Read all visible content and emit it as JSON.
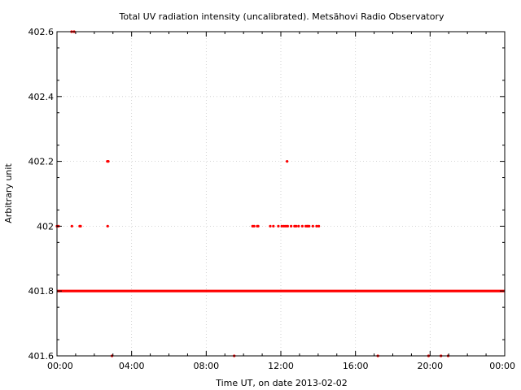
{
  "chart_data": {
    "type": "scatter",
    "title": "Total UV radiation intensity (uncalibrated). Metsähovi Radio Observatory",
    "xlabel": "Time UT, on date 2013-02-02",
    "ylabel": "Arbitrary unit",
    "xlim": [
      "00:00",
      "24:00"
    ],
    "ylim": [
      401.6,
      402.6
    ],
    "x_ticks": [
      "00:00",
      "04:00",
      "08:00",
      "12:00",
      "16:00",
      "20:00",
      "00:00"
    ],
    "y_ticks": [
      "401.6",
      "401.8",
      "402",
      "402.2",
      "402.4",
      "402.6"
    ],
    "grid": true,
    "marker_color": "#ff0000",
    "series": [
      {
        "baseline": {
          "value": 401.8,
          "from": "00:00",
          "to": "24:00"
        },
        "points": [
          {
            "x": "00:00",
            "y": 402.0
          },
          {
            "x": "00:05",
            "y": 402.0
          },
          {
            "x": "00:47",
            "y": 402.6
          },
          {
            "x": "00:55",
            "y": 402.6
          },
          {
            "x": "00:48",
            "y": 402.0
          },
          {
            "x": "01:13",
            "y": 402.0
          },
          {
            "x": "01:16",
            "y": 402.0
          },
          {
            "x": "02:42",
            "y": 402.2
          },
          {
            "x": "02:45",
            "y": 402.2
          },
          {
            "x": "02:43",
            "y": 402.0
          },
          {
            "x": "10:29",
            "y": 402.0
          },
          {
            "x": "10:34",
            "y": 402.0
          },
          {
            "x": "10:44",
            "y": 402.0
          },
          {
            "x": "10:47",
            "y": 402.0
          },
          {
            "x": "11:26",
            "y": 402.0
          },
          {
            "x": "11:36",
            "y": 402.0
          },
          {
            "x": "11:52",
            "y": 402.0
          },
          {
            "x": "12:03",
            "y": 402.0
          },
          {
            "x": "12:10",
            "y": 402.0
          },
          {
            "x": "12:16",
            "y": 402.0
          },
          {
            "x": "12:22",
            "y": 402.0
          },
          {
            "x": "12:20",
            "y": 402.2
          },
          {
            "x": "12:33",
            "y": 402.0
          },
          {
            "x": "12:44",
            "y": 402.0
          },
          {
            "x": "12:49",
            "y": 402.0
          },
          {
            "x": "12:57",
            "y": 402.0
          },
          {
            "x": "13:09",
            "y": 402.0
          },
          {
            "x": "13:20",
            "y": 402.0
          },
          {
            "x": "13:24",
            "y": 402.0
          },
          {
            "x": "13:27",
            "y": 402.0
          },
          {
            "x": "13:31",
            "y": 402.0
          },
          {
            "x": "13:43",
            "y": 402.0
          },
          {
            "x": "13:55",
            "y": 402.0
          },
          {
            "x": "14:02",
            "y": 402.0
          },
          {
            "x": "02:57",
            "y": 401.6
          },
          {
            "x": "09:30",
            "y": 401.6
          },
          {
            "x": "17:12",
            "y": 401.6
          },
          {
            "x": "19:55",
            "y": 401.6
          },
          {
            "x": "20:35",
            "y": 401.6
          },
          {
            "x": "20:58",
            "y": 401.6
          }
        ]
      }
    ]
  }
}
